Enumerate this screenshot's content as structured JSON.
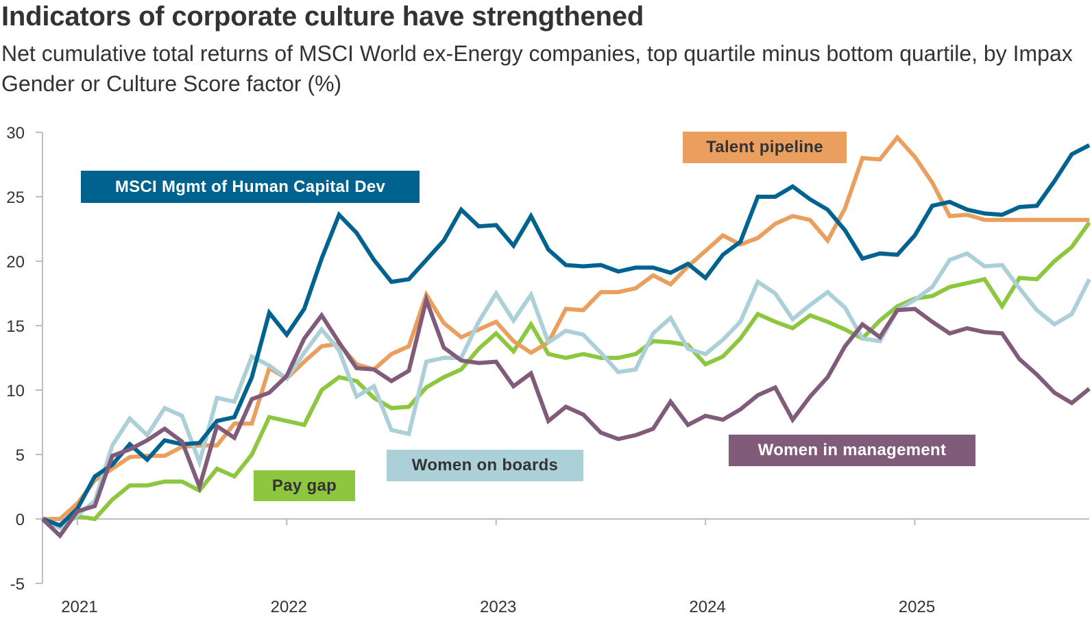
{
  "title": "Indicators of corporate culture have strengthened",
  "subtitle": "Net cumulative total returns of MSCI World ex-Energy companies, top quartile minus bottom quartile, by Impax Gender or Culture Score factor (%)",
  "chart_data": {
    "type": "line",
    "title": "Indicators of corporate culture have strengthened",
    "subtitle": "Net cumulative total returns of MSCI World ex-Energy companies, top quartile minus bottom quartile, by Impax Gender or Culture Score factor (%)",
    "xlabel": "",
    "ylabel": "",
    "ylim": [
      -5,
      30
    ],
    "yticks": [
      "30",
      "25",
      "20",
      "15",
      "10",
      "5",
      "0",
      "-5"
    ],
    "ytick_values": [
      30,
      25,
      20,
      15,
      10,
      5,
      0,
      -5
    ],
    "xticks": [
      "2021",
      "2022",
      "2023",
      "2024",
      "2025"
    ],
    "x_frequency": "monthly",
    "x_start": "2020-11",
    "x_end": "2025-11",
    "grid": false,
    "legend": "inline-labels",
    "series": [
      {
        "name": "MSCI Mgmt of Human Capital Dev",
        "color": "#00628f",
        "label_text_color": "#ffffff",
        "values": [
          0,
          -0.5,
          0.8,
          3.3,
          4.2,
          5.8,
          4.6,
          6.1,
          5.8,
          5.9,
          7.6,
          7.9,
          11,
          16,
          14.3,
          16.3,
          20.2,
          23.6,
          22.2,
          20.1,
          18.4,
          18.6,
          20.1,
          21.6,
          24,
          22.7,
          22.8,
          21.2,
          23.5,
          20.9,
          19.7,
          19.6,
          19.7,
          19.2,
          19.5,
          19.5,
          19.1,
          19.8,
          18.7,
          20.5,
          21.5,
          25,
          25,
          25.8,
          24.8,
          24,
          22.4,
          20.2,
          20.6,
          20.5,
          22,
          24.3,
          24.6,
          24,
          23.7,
          23.6,
          24.2,
          24.3,
          26.2,
          28.3,
          29
        ]
      },
      {
        "name": "Talent pipeline",
        "color": "#eb9f5e",
        "label_text_color": "#333333",
        "values": [
          0,
          0,
          1.2,
          3,
          3.9,
          4.8,
          4.9,
          4.9,
          5.6,
          5.7,
          5.7,
          7.4,
          7.4,
          11.7,
          10.9,
          12.2,
          13.4,
          13.6,
          12,
          11.6,
          12.8,
          13.4,
          17.4,
          15.2,
          14.1,
          14.7,
          15.3,
          13.8,
          12.9,
          13.7,
          16.3,
          16.2,
          17.6,
          17.6,
          17.9,
          18.9,
          18.2,
          19.6,
          20.8,
          22,
          21.3,
          21.8,
          22.9,
          23.5,
          23.2,
          21.6,
          24.1,
          28,
          27.9,
          29.6,
          28.1,
          26.1,
          23.5,
          23.6,
          23.2,
          23.2,
          23.2,
          23.2,
          23.2,
          23.2,
          23.2
        ]
      },
      {
        "name": "Pay gap",
        "color": "#8dc63f",
        "label_text_color": "#333333",
        "values": [
          0,
          -0.5,
          0.2,
          0,
          1.5,
          2.6,
          2.6,
          2.9,
          2.9,
          2.2,
          3.9,
          3.3,
          5,
          7.9,
          7.6,
          7.3,
          10,
          11,
          10.7,
          9.4,
          8.6,
          8.7,
          10.2,
          11,
          11.6,
          13.2,
          14.4,
          13,
          15.1,
          12.8,
          12.5,
          12.8,
          12.5,
          12.5,
          12.8,
          13.8,
          13.7,
          13.5,
          12,
          12.6,
          14,
          15.9,
          15.3,
          14.8,
          15.8,
          15.3,
          14.7,
          14,
          15.4,
          16.5,
          17.1,
          17.3,
          18,
          18.3,
          18.6,
          16.5,
          18.7,
          18.6,
          20,
          21.1,
          23
        ]
      },
      {
        "name": "Women on boards",
        "color": "#abd0d8",
        "label_text_color": "#333333",
        "values": [
          0,
          -0.7,
          0.3,
          1.4,
          5.7,
          7.8,
          6.5,
          8.6,
          8,
          4.4,
          9.4,
          9.1,
          12.6,
          11.9,
          10.9,
          12.9,
          14.7,
          13.1,
          9.5,
          10.3,
          6.9,
          6.6,
          12.2,
          12.5,
          12.5,
          15.3,
          17.5,
          15.4,
          17.4,
          13.7,
          14.6,
          14.3,
          12.9,
          11.4,
          11.6,
          14.4,
          15.6,
          13.2,
          12.8,
          13.9,
          15.3,
          18.4,
          17.5,
          15.5,
          16.6,
          17.6,
          16.4,
          14,
          13.8,
          16.2,
          17,
          18,
          20.1,
          20.6,
          19.6,
          19.7,
          17.9,
          16.2,
          15.1,
          15.9,
          18.6
        ]
      },
      {
        "name": "Women in management",
        "color": "#815b7a",
        "label_text_color": "#ffffff",
        "values": [
          0,
          -1.3,
          0.6,
          1,
          4.9,
          5.4,
          6.1,
          7,
          6,
          2.5,
          7.2,
          6.3,
          9.3,
          9.8,
          11.1,
          14,
          15.8,
          13.7,
          11.7,
          11.6,
          10.7,
          11.5,
          17,
          13.3,
          12.3,
          12.1,
          12.2,
          10.3,
          11.3,
          7.6,
          8.7,
          8.1,
          6.7,
          6.2,
          6.5,
          7,
          9.1,
          7.3,
          8,
          7.7,
          8.5,
          9.6,
          10.2,
          7.7,
          9.5,
          11,
          13.4,
          15.1,
          14.1,
          16.2,
          16.3,
          15.3,
          14.4,
          14.8,
          14.5,
          14.4,
          12.4,
          11.2,
          9.8,
          9,
          10.1
        ]
      }
    ]
  }
}
